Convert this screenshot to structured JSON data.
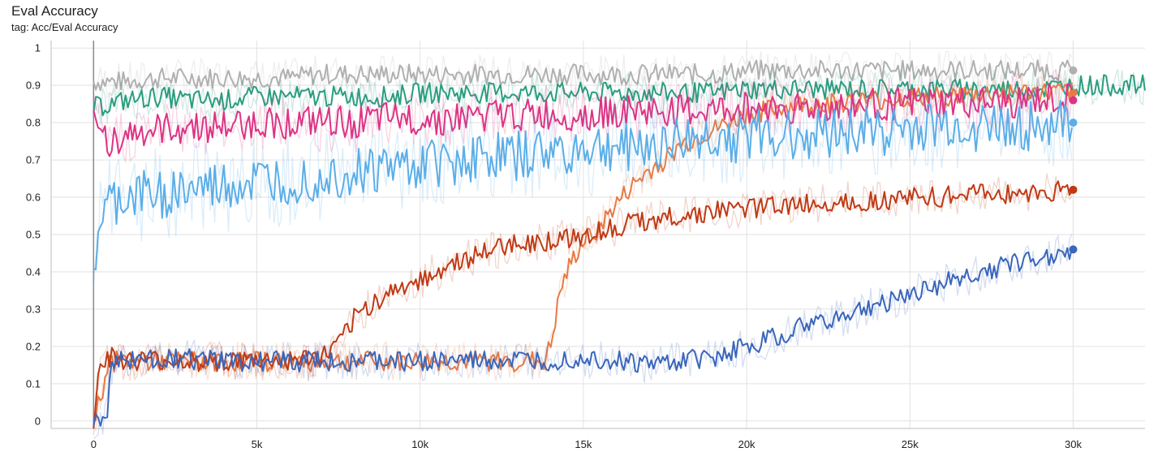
{
  "header": {
    "title": "Eval Accuracy",
    "tag": "tag: Acc/Eval Accuracy"
  },
  "chart_data": {
    "type": "line",
    "title": "Eval Accuracy",
    "xlim": [
      -1300,
      32200
    ],
    "ylim": [
      -0.02,
      1.02
    ],
    "grid": true,
    "x_ticks": [
      0,
      5000,
      10000,
      15000,
      20000,
      25000,
      30000
    ],
    "x_tick_labels": [
      "0",
      "5k",
      "10k",
      "15k",
      "20k",
      "25k",
      "30k"
    ],
    "y_ticks": [
      0,
      0.1,
      0.2,
      0.3,
      0.4,
      0.5,
      0.6,
      0.7,
      0.8,
      0.9,
      1
    ],
    "y_tick_labels": [
      "0",
      "0.1",
      "0.2",
      "0.3",
      "0.4",
      "0.5",
      "0.6",
      "0.7",
      "0.8",
      "0.9",
      "1"
    ],
    "series": [
      {
        "color": "#b0b0b0",
        "endpoint": true,
        "x": [
          0,
          1000,
          2000,
          3000,
          4000,
          5000,
          6000,
          7000,
          8000,
          9000,
          10000,
          11000,
          12000,
          13000,
          14000,
          15000,
          16000,
          17000,
          18000,
          19000,
          20000,
          21000,
          22000,
          23000,
          24000,
          25000,
          26000,
          27000,
          28000,
          29000,
          30000
        ],
        "y": [
          0.91,
          0.91,
          0.92,
          0.92,
          0.92,
          0.92,
          0.92,
          0.93,
          0.93,
          0.93,
          0.93,
          0.93,
          0.93,
          0.93,
          0.93,
          0.93,
          0.93,
          0.93,
          0.93,
          0.93,
          0.94,
          0.94,
          0.94,
          0.94,
          0.94,
          0.94,
          0.94,
          0.94,
          0.94,
          0.94,
          0.94
        ]
      },
      {
        "color": "#2a9d7f",
        "endpoint": false,
        "x": [
          0,
          1000,
          2000,
          3000,
          4000,
          5000,
          6000,
          7000,
          8000,
          9000,
          10000,
          11000,
          12000,
          13000,
          14000,
          15000,
          16000,
          17000,
          18000,
          19000,
          20000,
          21000,
          22000,
          23000,
          24000,
          25000,
          26000,
          27000,
          28000,
          29000,
          30000,
          31000,
          32200
        ],
        "y": [
          0.84,
          0.86,
          0.87,
          0.86,
          0.86,
          0.87,
          0.87,
          0.87,
          0.87,
          0.87,
          0.88,
          0.88,
          0.88,
          0.88,
          0.88,
          0.88,
          0.88,
          0.88,
          0.88,
          0.88,
          0.89,
          0.89,
          0.89,
          0.89,
          0.89,
          0.89,
          0.89,
          0.89,
          0.89,
          0.89,
          0.9,
          0.9,
          0.9
        ]
      },
      {
        "color": "#e87a45",
        "endpoint": true,
        "x": [
          0,
          500,
          1000,
          2000,
          4000,
          6000,
          8000,
          10000,
          12000,
          13000,
          13800,
          14000,
          14300,
          14600,
          15000,
          15500,
          16000,
          16500,
          17000,
          17500,
          18000,
          19000,
          20000,
          21000,
          22000,
          24000,
          26000,
          28000,
          30000
        ],
        "y": [
          0,
          0.16,
          0.16,
          0.16,
          0.16,
          0.16,
          0.16,
          0.16,
          0.16,
          0.16,
          0.16,
          0.2,
          0.35,
          0.42,
          0.48,
          0.52,
          0.58,
          0.63,
          0.67,
          0.7,
          0.74,
          0.78,
          0.82,
          0.84,
          0.85,
          0.86,
          0.87,
          0.88,
          0.88
        ]
      },
      {
        "color": "#dd3384",
        "endpoint": true,
        "x": [
          0,
          500,
          1000,
          2000,
          3000,
          4000,
          5000,
          6000,
          7000,
          8000,
          9000,
          10000,
          11000,
          12000,
          13000,
          14000,
          15000,
          16000,
          17000,
          18000,
          19000,
          20000,
          21000,
          22000,
          23000,
          24000,
          25000,
          26000,
          27000,
          28000,
          29000,
          30000
        ],
        "y": [
          0.8,
          0.75,
          0.77,
          0.78,
          0.79,
          0.79,
          0.8,
          0.8,
          0.8,
          0.8,
          0.81,
          0.81,
          0.81,
          0.82,
          0.82,
          0.82,
          0.82,
          0.83,
          0.83,
          0.83,
          0.83,
          0.84,
          0.84,
          0.84,
          0.84,
          0.85,
          0.85,
          0.85,
          0.85,
          0.85,
          0.86,
          0.86
        ]
      },
      {
        "color": "#5aaee8",
        "endpoint": true,
        "x": [
          0,
          200,
          500,
          1000,
          2000,
          3000,
          4000,
          5000,
          6000,
          7000,
          8000,
          9000,
          10000,
          11000,
          12000,
          13000,
          14000,
          15000,
          16000,
          17000,
          18000,
          19000,
          20000,
          21000,
          22000,
          23000,
          24000,
          25000,
          26000,
          27000,
          28000,
          29000,
          30000
        ],
        "y": [
          0.4,
          0.54,
          0.58,
          0.6,
          0.61,
          0.62,
          0.63,
          0.64,
          0.65,
          0.66,
          0.67,
          0.68,
          0.69,
          0.7,
          0.71,
          0.71,
          0.72,
          0.73,
          0.73,
          0.74,
          0.75,
          0.76,
          0.76,
          0.77,
          0.77,
          0.78,
          0.78,
          0.78,
          0.79,
          0.79,
          0.79,
          0.79,
          0.8
        ]
      },
      {
        "color": "#bf3a15",
        "endpoint": true,
        "x": [
          0,
          200,
          500,
          1000,
          2000,
          3000,
          4000,
          5000,
          6000,
          7000,
          7500,
          8000,
          8500,
          9000,
          10000,
          11000,
          12000,
          13000,
          14000,
          15000,
          16000,
          17000,
          18000,
          19000,
          20000,
          21000,
          22000,
          23000,
          24000,
          25000,
          26000,
          27000,
          28000,
          29000,
          30000
        ],
        "y": [
          0,
          0.16,
          0.17,
          0.16,
          0.16,
          0.16,
          0.16,
          0.16,
          0.16,
          0.17,
          0.2,
          0.28,
          0.31,
          0.34,
          0.38,
          0.42,
          0.45,
          0.48,
          0.48,
          0.5,
          0.52,
          0.54,
          0.55,
          0.56,
          0.57,
          0.58,
          0.58,
          0.59,
          0.59,
          0.6,
          0.6,
          0.61,
          0.61,
          0.61,
          0.62
        ]
      },
      {
        "color": "#3a66bb",
        "endpoint": true,
        "x": [
          0,
          400,
          500,
          700,
          1000,
          2000,
          4000,
          6000,
          8000,
          10000,
          12000,
          14000,
          15000,
          16000,
          17000,
          18000,
          19000,
          20000,
          21000,
          22000,
          23000,
          24000,
          25000,
          26000,
          27000,
          28000,
          29000,
          30000
        ],
        "y": [
          0,
          0,
          0.14,
          0.16,
          0.16,
          0.17,
          0.16,
          0.16,
          0.16,
          0.16,
          0.16,
          0.16,
          0.17,
          0.16,
          0.15,
          0.16,
          0.17,
          0.2,
          0.23,
          0.26,
          0.28,
          0.31,
          0.34,
          0.37,
          0.39,
          0.42,
          0.44,
          0.46
        ]
      }
    ]
  }
}
